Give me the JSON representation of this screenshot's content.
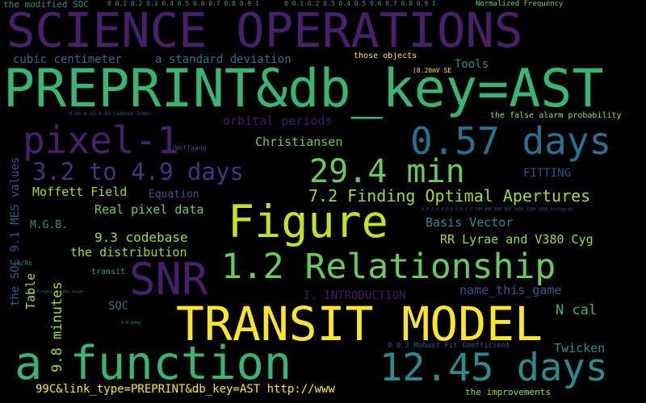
{
  "words": {
    "modified_soc": "the modified SOC",
    "axis_ticks_a": "0 0.1 0.2 0.3 0.4 0.5 0.6 0.7 0.8 0.9 1",
    "axis_ticks_b": "0  0.1  0.2  0.3  0.4  0.5  0.6  0.7  0.8  0.9  1",
    "normalized_frequency": "Normalized Frequency",
    "science_operations": "SCIENCE OPERATIONS",
    "cubic_centimeter": "cubic centimeter",
    "standard_deviation": "a standard deviation",
    "those_objects": "those objects",
    "tools": "Tools",
    "preprint": "PREPRINT&db_key=AST",
    "mv_se": "(0.20mV SE",
    "cadence_index": "0.01  0.02  0.03  Cadence Index",
    "false_alarm": "the false alarm probability",
    "orbital_periods": "orbital periods",
    "pixel_1": "pixel-1",
    "days_057": "0.57 days",
    "christiansen": "Christiansen",
    "wolfgang": "(Wolfgang",
    "days_range": "3.2 to 4.9 days",
    "min_294": "29.4 min",
    "fitting": "FITTING",
    "moffett": "Moffett Field",
    "equation": "Equation",
    "finding_apertures": "7.2 Finding Optimal Apertures",
    "histogram_ticks": "0 0.2 0.4 0.6 0.8 1 0  200  400  600  800  1000  1200  1400 Histogram",
    "mgb": "M.G.B.",
    "real_pixel": "Real pixel data",
    "figure": "Figure",
    "basis_vector": "Basis Vector",
    "codebase": "9.3 codebase",
    "rr_lyrae": "RR Lyrae and V380 Cyg",
    "distribution": "the distribution",
    "relationship": "1.2 Relationship",
    "a_rs": "(a/Rs",
    "transit": "transit",
    "snr": "SNR",
    "name_game": "name_this_game",
    "introduction": "I. INTRODUCTION",
    "highly_variable": "0.4  A highly variable target",
    "soc": "SOC",
    "n_cal": "N cal",
    "transit_model": "TRANSIT MODEL",
    "pong": "0.0 pong",
    "robust_fit": "0  0.2  Robust Fit Coefficient",
    "twicken": "Twicken",
    "a_function": "a function",
    "days_1245": "12.45 days",
    "link_type": "99C&link_type=PREPRINT&db_key=AST http://www",
    "improvements": "the improvements",
    "soc_mes": "the SOC 9.1 MES values",
    "table": "Table",
    "minutes_98": "9.8 minutes"
  },
  "colors": {
    "teal": "#2b8a8c",
    "darkteal": "#27708e",
    "purple": "#46206a",
    "lightgreen": "#67cc5c",
    "green": "#37b574",
    "lime": "#a0da39",
    "yellow": "#fde725",
    "blue": "#3b528b",
    "indigo": "#3e4989",
    "aqua": "#1fa187",
    "slate": "#31688e"
  }
}
